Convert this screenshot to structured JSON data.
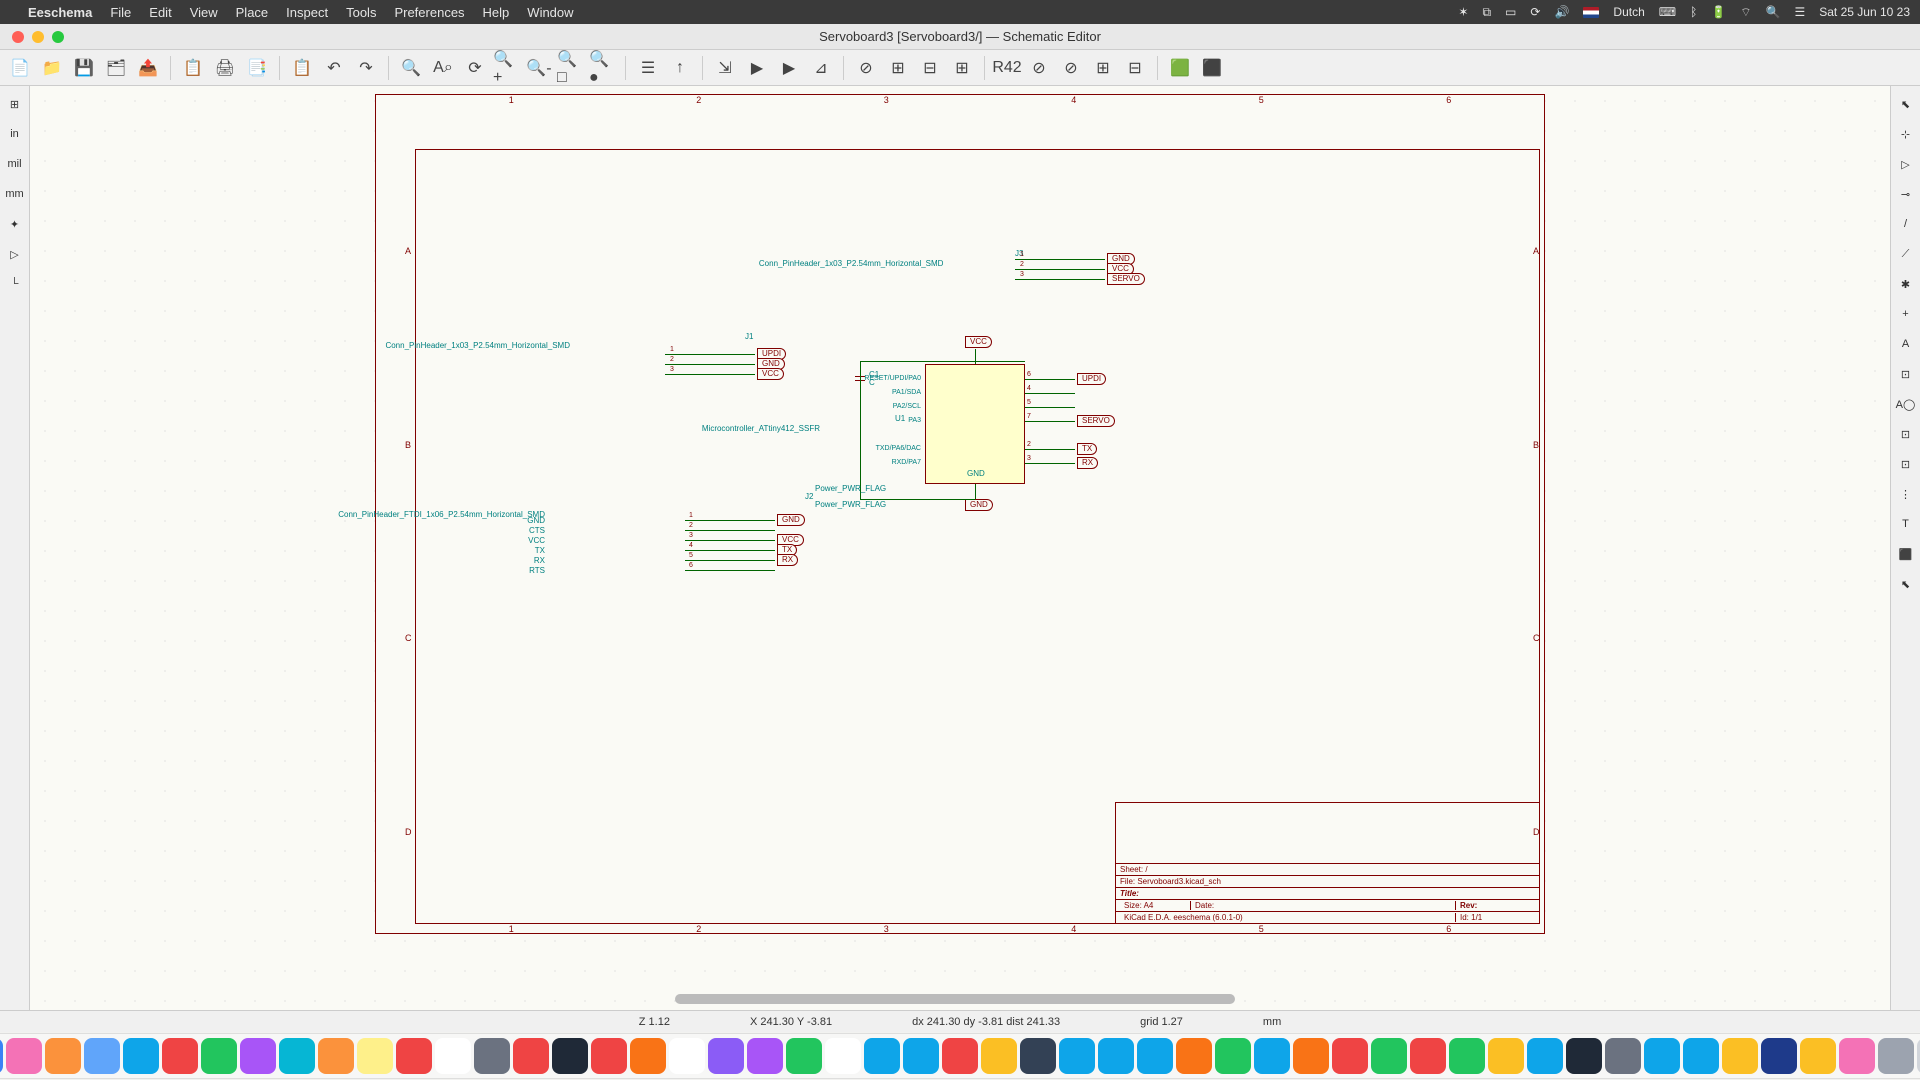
{
  "menubar": {
    "app": "Eeschema",
    "items": [
      "File",
      "Edit",
      "View",
      "Place",
      "Inspect",
      "Tools",
      "Preferences",
      "Help",
      "Window"
    ],
    "lang": "Dutch",
    "clock": "Sat 25 Jun  10 23"
  },
  "titlebar": {
    "title": "Servoboard3 [Servoboard3/] — Schematic Editor"
  },
  "toolbar_icons": [
    "📄",
    "📁",
    "💾",
    "🗂",
    "📤",
    "│",
    "📋",
    "🖨",
    "📑",
    "│",
    "📋",
    "↶",
    "↷",
    "│",
    "🔍",
    "A⌕",
    "⟳",
    "🔍+",
    "🔍-",
    "🔍□",
    "🔍●",
    "│",
    "☰",
    "↑",
    "│",
    "⇲",
    "▶",
    "▶",
    "⊿",
    "│",
    "⊘",
    "⊞",
    "⊟",
    "⊞",
    "│",
    "R42",
    "⊘",
    "⊘",
    "⊞",
    "⊟",
    "│",
    "🟩",
    "⬛"
  ],
  "left_tools": [
    "⊞",
    "in",
    "mil",
    "mm",
    "✦",
    "▷",
    "└"
  ],
  "right_tools": [
    "⬉",
    "⊹",
    "▷",
    "⊸",
    "/",
    "⟋",
    "✱",
    "+",
    "A",
    "⊡",
    "A◯",
    "⊡",
    "⊡",
    "⋮",
    "T",
    "⬛",
    "⬉"
  ],
  "statusbar": {
    "z": "Z 1.12",
    "xy": "X 241.30  Y -3.81",
    "dxy": "dx 241.30  dy -3.81  dist 241.33",
    "grid": "grid 1.27",
    "unit": "mm"
  },
  "schematic": {
    "sheet_frame_color": "#800000",
    "wire_color": "#006400",
    "ref_color": "#008080",
    "bg_color": "#fafaf5",
    "ic_fill": "#ffffcc",
    "ruler_nums": [
      "1",
      "2",
      "3",
      "4",
      "5",
      "6"
    ],
    "ruler_letters": [
      "A",
      "B",
      "C",
      "D"
    ],
    "j3": {
      "ref": "J3",
      "value": "Conn_PinHeader_1x03_P2.54mm_Horizontal_SMD",
      "nets": [
        "GND",
        "VCC",
        "SERVO"
      ],
      "pins": [
        "1",
        "2",
        "3"
      ]
    },
    "j1": {
      "ref": "J1",
      "value": "Conn_PinHeader_1x03_P2.54mm_Horizontal_SMD",
      "nets": [
        "UPDI",
        "GND",
        "VCC"
      ],
      "pins": [
        "1",
        "2",
        "3"
      ]
    },
    "c1": {
      "ref": "C1",
      "value": "C"
    },
    "u1": {
      "ref": "U1",
      "value": "Microcontroller_ATtiny412_SSFR",
      "pwr_top": "VCC",
      "pwr_bot": "GND",
      "pins_right": [
        {
          "name": "RESET/UPDI/PA0",
          "num": "6",
          "net": "UPDI"
        },
        {
          "name": "PA1/SDA",
          "num": "4",
          "net": ""
        },
        {
          "name": "PA2/SCL",
          "num": "5",
          "net": ""
        },
        {
          "name": "PA3",
          "num": "7",
          "net": "SERVO"
        },
        {
          "name": "TXD/PA6/DAC",
          "num": "2",
          "net": "TX"
        },
        {
          "name": "RXD/PA7",
          "num": "3",
          "net": "RX"
        }
      ],
      "gnd_label": "GND"
    },
    "j2": {
      "ref": "J2",
      "flag1": "Power_PWR_FLAG",
      "flag2": "Power_PWR_FLAG",
      "value": "Conn_PinHeader_FTDI_1x06_P2.54mm_Horizontal_SMD",
      "pin_names": [
        "GND",
        "CTS",
        "VCC",
        "TX",
        "RX",
        "RTS"
      ],
      "pins": [
        "1",
        "2",
        "3",
        "4",
        "5",
        "6"
      ],
      "nets": [
        "GND",
        "",
        "VCC",
        "TX",
        "RX",
        ""
      ]
    },
    "titleblock": {
      "sheet": "Sheet: /",
      "file": "File: Servoboard3.kicad_sch",
      "title_lbl": "Title:",
      "size": "Size: A4",
      "date": "Date:",
      "rev": "Rev:",
      "kicad": "KiCad E.D.A.  eeschema (6.0.1-0)",
      "id": "Id: 1/1"
    }
  },
  "dock_colors": [
    "#3b82f6",
    "#f472b6",
    "#fb923c",
    "#60a5fa",
    "#0ea5e9",
    "#ef4444",
    "#22c55e",
    "#a855f7",
    "#06b6d4",
    "#fb923c",
    "#fef08a",
    "#ef4444",
    "#ffffff",
    "#6b7280",
    "#ef4444",
    "#1f2937",
    "#ef4444",
    "#f97316",
    "#ffffff",
    "#8b5cf6",
    "#a855f7",
    "#22c55e",
    "#ffffff",
    "#0ea5e9",
    "#0ea5e9",
    "#ef4444",
    "#fbbf24",
    "#334155",
    "#0ea5e9",
    "#0ea5e9",
    "#0ea5e9",
    "#f97316",
    "#22c55e",
    "#0ea5e9",
    "#f97316",
    "#ef4444",
    "#22c55e",
    "#ef4444",
    "#22c55e",
    "#fbbf24",
    "#0ea5e9",
    "#1f2937",
    "#6b7280",
    "#0ea5e9",
    "#0ea5e9",
    "#fbbf24",
    "#1e3a8a",
    "#fbbf24",
    "#f472b6",
    "#9ca3af",
    "#d1d5db"
  ]
}
